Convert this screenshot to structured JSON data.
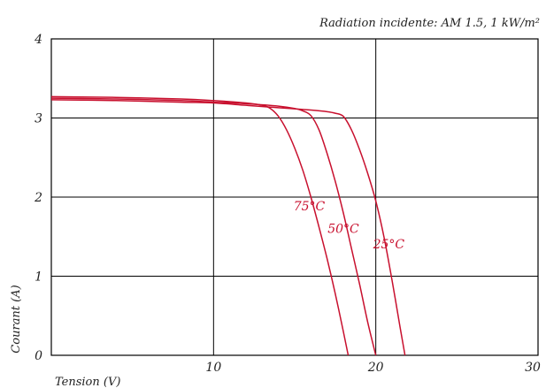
{
  "chart_data": {
    "type": "line",
    "annotation": "Radiation incidente: AM 1.5, 1 kW/m²",
    "xlabel": "Tension (V)",
    "ylabel": "Courant (A)",
    "xlim": [
      0,
      30
    ],
    "ylim": [
      0,
      4
    ],
    "x_ticks": [
      "10",
      "20",
      "30"
    ],
    "y_ticks": [
      "0",
      "1",
      "2",
      "3",
      "4"
    ],
    "grid": true,
    "line_color": "#c8102e",
    "series": [
      {
        "name": "75°C",
        "x": [
          0,
          4,
          8,
          10,
          12,
          13,
          13.5,
          14,
          14.5,
          15,
          15.5,
          16,
          16.5,
          17,
          17.5,
          18,
          18.3
        ],
        "y": [
          3.27,
          3.26,
          3.24,
          3.22,
          3.19,
          3.16,
          3.12,
          3.02,
          2.85,
          2.62,
          2.34,
          2.0,
          1.62,
          1.22,
          0.78,
          0.3,
          0
        ]
      },
      {
        "name": "50°C",
        "x": [
          0,
          4,
          8,
          10,
          12,
          14,
          15,
          15.5,
          16,
          16.5,
          17,
          17.5,
          18,
          18.5,
          19,
          19.5,
          20
        ],
        "y": [
          3.25,
          3.24,
          3.22,
          3.2,
          3.18,
          3.15,
          3.12,
          3.09,
          3.03,
          2.85,
          2.55,
          2.2,
          1.8,
          1.35,
          0.9,
          0.42,
          0
        ]
      },
      {
        "name": "25°C",
        "x": [
          0,
          4,
          8,
          10,
          12,
          14,
          16,
          17,
          17.5,
          18,
          18.5,
          19,
          19.5,
          20,
          20.5,
          21,
          21.5,
          21.8
        ],
        "y": [
          3.23,
          3.22,
          3.2,
          3.19,
          3.16,
          3.13,
          3.1,
          3.08,
          3.06,
          3.02,
          2.85,
          2.6,
          2.3,
          1.95,
          1.5,
          0.95,
          0.35,
          0
        ]
      }
    ],
    "curve_labels": [
      {
        "text": "75°C",
        "x": 15.9,
        "y": 1.83
      },
      {
        "text": "50°C",
        "x": 18.0,
        "y": 1.55
      },
      {
        "text": "25°C",
        "x": 20.8,
        "y": 1.35
      }
    ]
  }
}
